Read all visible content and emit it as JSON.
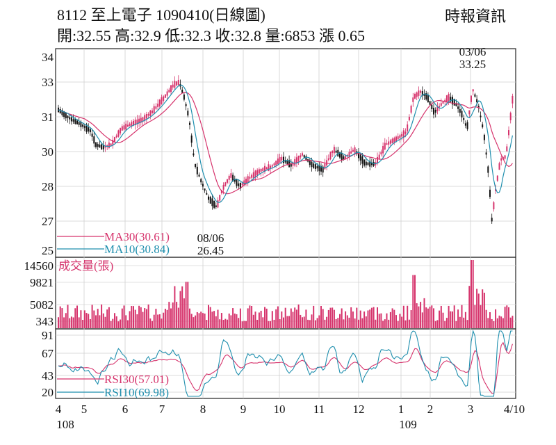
{
  "header": {
    "title": "8112  至上電子 1090410(日線圖)",
    "stats": "開:32.55 高:32.9 低:32.3 收:32.8 量:6853 漲 0.65",
    "source": "時報資訊"
  },
  "chart_data": {
    "type": "candlestick",
    "price_panel": {
      "y_ticks": [
        "34",
        "33",
        "31",
        "30",
        "28",
        "27",
        "25"
      ],
      "legend": [
        {
          "label": "MA30(30.61)",
          "color": "#d6336c"
        },
        {
          "label": "MA10(30.84)",
          "color": "#1f8fae"
        }
      ],
      "annotations": [
        {
          "date": "03/06",
          "value": "33.25",
          "kind": "high"
        },
        {
          "date": "08/06",
          "value": "26.45",
          "kind": "low"
        }
      ],
      "candle_up_color": "#d6336c",
      "candle_down_color": "#111111"
    },
    "volume_panel": {
      "title": "成交量(張)",
      "y_ticks": [
        "14560",
        "9821",
        "5082",
        "343"
      ],
      "bar_color": "#d6336c"
    },
    "rsi_panel": {
      "y_ticks": [
        "91",
        "67",
        "43",
        "20"
      ],
      "legend": [
        {
          "label": "RSI30(57.01)",
          "color": "#d6336c"
        },
        {
          "label": "RSI10(69.98)",
          "color": "#1f8fae"
        }
      ]
    },
    "x_axis": {
      "month_ticks": [
        "4",
        "5",
        "6",
        "7",
        "8",
        "9",
        "10",
        "11",
        "12",
        "1",
        "2",
        "3",
        "4/10"
      ],
      "year_labels": [
        {
          "label": "108",
          "at_month": "4"
        },
        {
          "label": "109",
          "at_month": "1"
        }
      ]
    }
  }
}
